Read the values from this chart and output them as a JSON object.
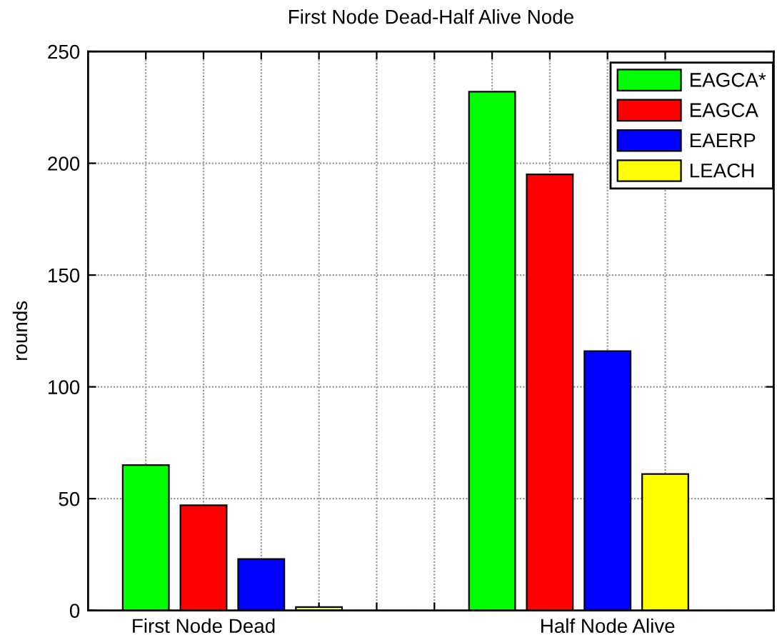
{
  "chart_data": {
    "type": "bar",
    "title": "First Node Dead-Half Alive Node",
    "ylabel": "rounds",
    "categories": [
      null,
      "First Node Dead",
      null,
      null,
      null,
      null,
      null,
      null,
      "Half Node Alive",
      null
    ],
    "ylim": [
      0,
      250
    ],
    "yticks": [
      0,
      50,
      100,
      150,
      200,
      250
    ],
    "series": [
      {
        "name": "EAGCA*",
        "color": "#00ff00",
        "values": [
          65,
          null,
          null,
          null,
          null,
          null,
          232,
          null,
          null,
          null
        ]
      },
      {
        "name": "EAGCA",
        "color": "#ff0000",
        "values": [
          null,
          47,
          null,
          null,
          null,
          null,
          null,
          195,
          null,
          null
        ]
      },
      {
        "name": "EAERP",
        "color": "#0000ff",
        "values": [
          null,
          null,
          23,
          null,
          null,
          null,
          null,
          null,
          116,
          null
        ]
      },
      {
        "name": "LEACH",
        "color": "#ffff00",
        "values": [
          null,
          null,
          null,
          1.5,
          null,
          null,
          null,
          null,
          null,
          61
        ]
      }
    ],
    "grid": true,
    "legend": "top right"
  }
}
